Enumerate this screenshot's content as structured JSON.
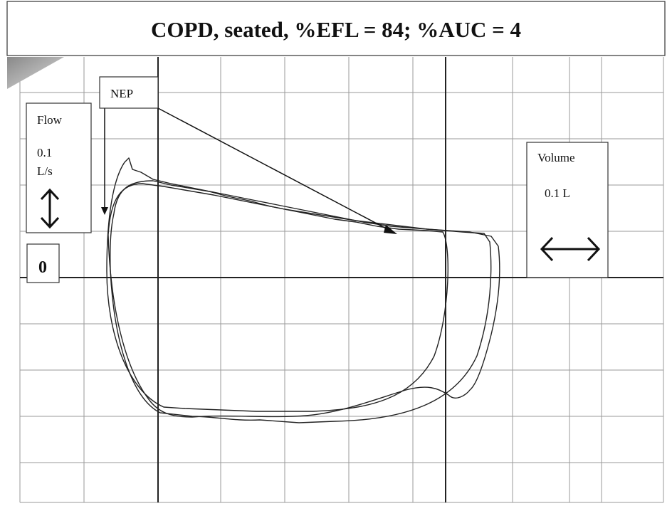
{
  "title": "COPD, seated, %EFL = 84; %AUC = 4",
  "nep_label": "NEP",
  "flow_box": {
    "label": "Flow",
    "scale": "0.1",
    "unit": "L/s"
  },
  "zero_label": "0",
  "volume_box": {
    "label": "Volume",
    "scale": "0.1 L"
  }
}
